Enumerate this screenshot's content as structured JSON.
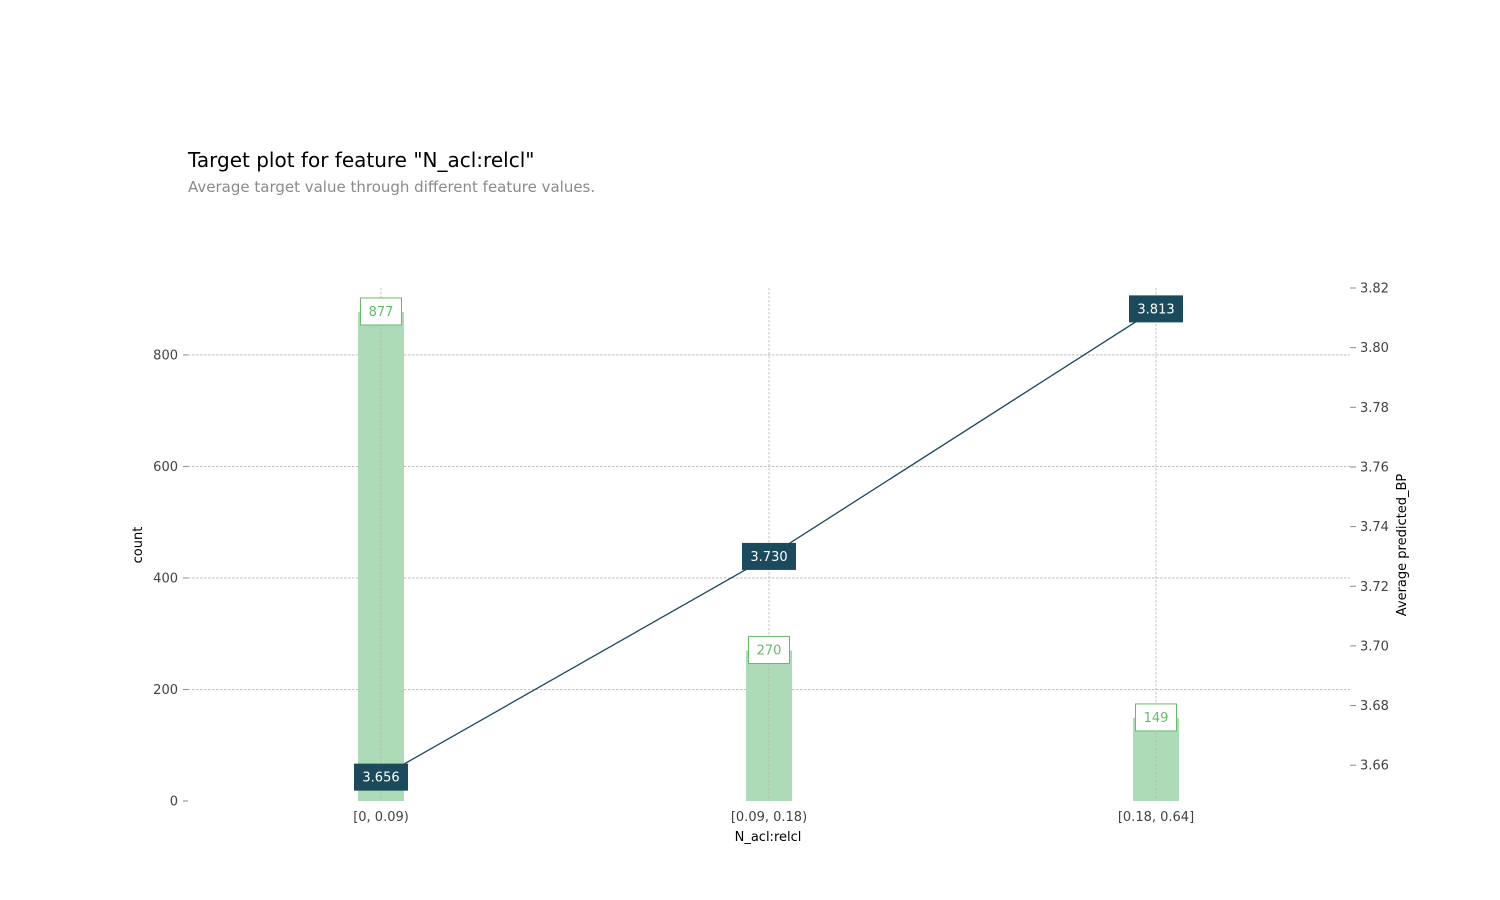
{
  "chart_data": {
    "type": "bar+line",
    "title": "Target plot for feature \"N_acl:relcl\"",
    "subtitle": "Average target value through different feature values.",
    "categories": [
      "[0, 0.09)",
      "[0.09, 0.18)",
      "[0.18, 0.64]"
    ],
    "xlabel": "N_acl:relcl",
    "ylabel_left": "count",
    "ylabel_right": "Average predicted_BP",
    "series": [
      {
        "name": "count",
        "type": "bar",
        "axis": "left",
        "values": [
          877,
          270,
          149
        ],
        "labels": [
          "877",
          "270",
          "149"
        ]
      },
      {
        "name": "Average predicted_BP",
        "type": "line",
        "axis": "right",
        "values": [
          3.656,
          3.73,
          3.813
        ],
        "labels": [
          "3.656",
          "3.730",
          "3.813"
        ]
      }
    ],
    "y_left": {
      "ylim": [
        0,
        920
      ],
      "ticks": [
        0,
        200,
        400,
        600,
        800
      ],
      "tick_labels": [
        "0",
        "200",
        "400",
        "600",
        "800"
      ]
    },
    "y_right": {
      "ylim": [
        3.648,
        3.82
      ],
      "ticks": [
        3.66,
        3.68,
        3.7,
        3.72,
        3.74,
        3.76,
        3.78,
        3.8,
        3.82
      ],
      "tick_labels": [
        "3.66",
        "3.68",
        "3.70",
        "3.72",
        "3.74",
        "3.76",
        "3.78",
        "3.80",
        "3.82"
      ]
    },
    "grid": true,
    "colors": {
      "bar": "#addbb8",
      "bar_label": "#66bb6a",
      "line": "#1a4a5c",
      "line_label_bg": "#1a4a5c"
    }
  }
}
